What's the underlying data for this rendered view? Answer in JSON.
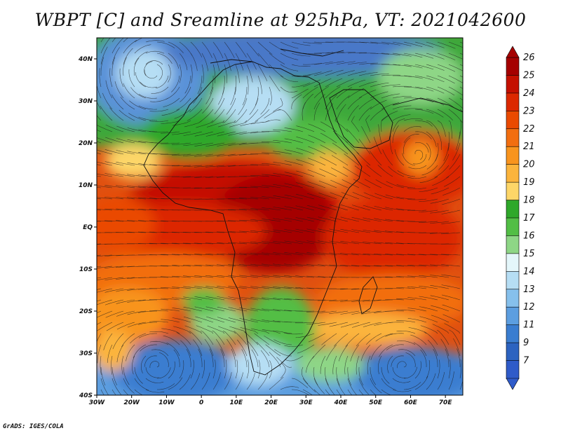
{
  "title": "WBPT [C] and Sreamline at 925hPa, VT: 2021042600",
  "credit": "GrADS: IGES/COLA",
  "map": {
    "variable": "Wet-bulb potential temperature",
    "level": "925hPa",
    "lon_range": [
      -30,
      75
    ],
    "lat_range": [
      -40,
      45
    ],
    "lat_ticks": [
      {
        "value": 40,
        "label": "40N"
      },
      {
        "value": 30,
        "label": "30N"
      },
      {
        "value": 20,
        "label": "20N"
      },
      {
        "value": 10,
        "label": "10N"
      },
      {
        "value": 0,
        "label": "EQ"
      },
      {
        "value": -10,
        "label": "10S"
      },
      {
        "value": -20,
        "label": "20S"
      },
      {
        "value": -30,
        "label": "30S"
      },
      {
        "value": -40,
        "label": "40S"
      }
    ],
    "lon_ticks": [
      {
        "value": -30,
        "label": "30W"
      },
      {
        "value": -20,
        "label": "20W"
      },
      {
        "value": -10,
        "label": "10W"
      },
      {
        "value": 0,
        "label": "0"
      },
      {
        "value": 10,
        "label": "10E"
      },
      {
        "value": 20,
        "label": "20E"
      },
      {
        "value": 30,
        "label": "30E"
      },
      {
        "value": 40,
        "label": "40E"
      },
      {
        "value": 50,
        "label": "50E"
      },
      {
        "value": 60,
        "label": "60E"
      },
      {
        "value": 70,
        "label": "70E"
      }
    ],
    "features": [
      {
        "name": "north-atlantic-cyclone",
        "lon": -14,
        "lat": 37,
        "kind": "cyclonic-vortex"
      },
      {
        "name": "south-atlantic-anticyclone",
        "lon": -13,
        "lat": -33,
        "kind": "anticyclonic-vortex"
      },
      {
        "name": "south-indian-anticyclone",
        "lon": 58,
        "lat": -33,
        "kind": "anticyclonic-vortex"
      },
      {
        "name": "arabian-sea-vortex",
        "lon": 62,
        "lat": 17,
        "kind": "cyclonic-vortex"
      }
    ]
  },
  "colorbar": {
    "labels": [
      "26",
      "25",
      "24",
      "23",
      "22",
      "21",
      "20",
      "19",
      "18",
      "17",
      "16",
      "15",
      "14",
      "13",
      "12",
      "11",
      "9",
      "7"
    ],
    "colors": [
      "#a50000",
      "#c41000",
      "#dc2800",
      "#ea4a00",
      "#f26e10",
      "#f8941e",
      "#fbb43c",
      "#fdd668",
      "#2fa82a",
      "#52be45",
      "#8ed686",
      "#e4f6fa",
      "#b6def4",
      "#86c0ec",
      "#5c9ee0",
      "#3a7dd0",
      "#2c63c0",
      "#2f5bc9"
    ]
  }
}
